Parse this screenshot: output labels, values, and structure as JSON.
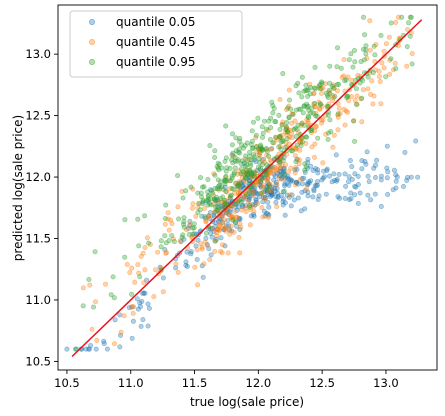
{
  "chart_data": {
    "type": "scatter",
    "title": "",
    "xlabel": "true log(sale price)",
    "ylabel": "predicted log(sale price)",
    "xlim": [
      10.43,
      13.4
    ],
    "ylim": [
      10.43,
      13.4
    ],
    "xticks": [
      "10.5",
      "11.0",
      "11.5",
      "12.0",
      "12.5",
      "13.0"
    ],
    "yticks": [
      "10.5",
      "11.0",
      "11.5",
      "12.0",
      "12.5",
      "13.0"
    ],
    "grid": false,
    "legend_position": "top-left",
    "series": [
      {
        "name": "quantile 0.05",
        "color": "#1f77b4"
      },
      {
        "name": "quantile 0.45",
        "color": "#ff7f0e"
      },
      {
        "name": "quantile 0.95",
        "color": "#2ca02c"
      }
    ],
    "reference_line": {
      "x": [
        10.54,
        13.28
      ],
      "y": [
        10.54,
        13.28
      ],
      "color": "#e8131f"
    }
  }
}
